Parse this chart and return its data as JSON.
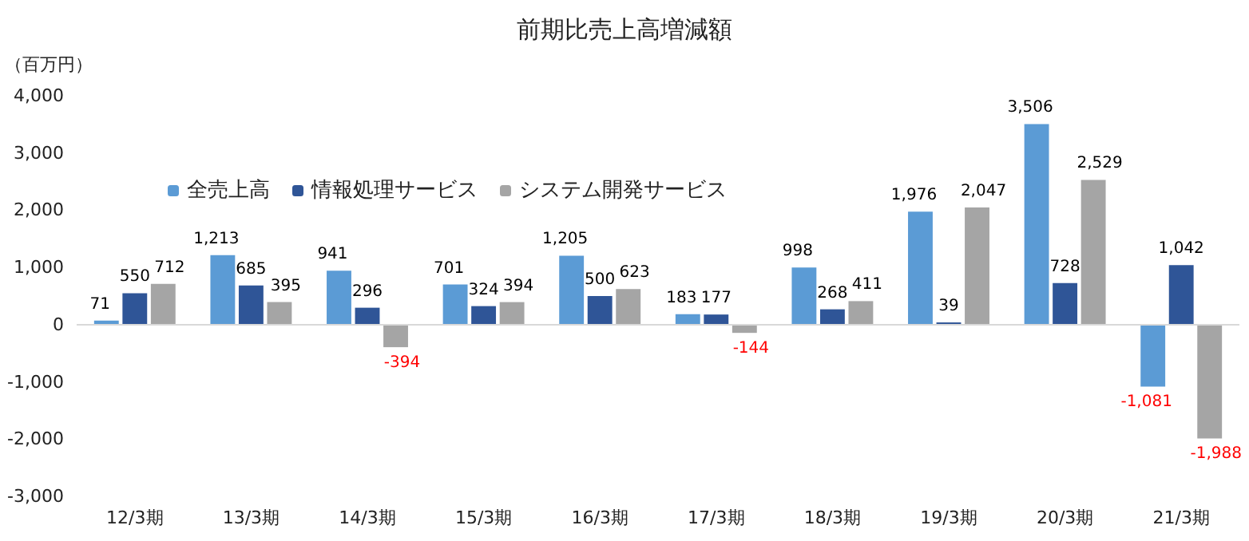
{
  "chart_data": {
    "type": "bar",
    "title": "前期比売上高増減額",
    "ylabel": "（百万円）",
    "categories": [
      "12/3期",
      "13/3期",
      "14/3期",
      "15/3期",
      "16/3期",
      "17/3期",
      "18/3期",
      "19/3期",
      "20/3期",
      "21/3期"
    ],
    "series": [
      {
        "name": "全売上高",
        "color": "#5b9bd5",
        "values": [
          71,
          1213,
          941,
          701,
          1205,
          183,
          998,
          1976,
          3506,
          -1081
        ],
        "value_labels": [
          "71",
          "1,213",
          "941",
          "701",
          "1,205",
          "183",
          "998",
          "1,976",
          "3,506",
          "-1,081"
        ]
      },
      {
        "name": "情報処理サービス",
        "color": "#2f5597",
        "values": [
          550,
          685,
          296,
          324,
          500,
          177,
          268,
          39,
          728,
          1042
        ],
        "value_labels": [
          "550",
          "685",
          "296",
          "324",
          "500",
          "177",
          "268",
          "39",
          "728",
          "1,042"
        ]
      },
      {
        "name": "システム開発サービス",
        "color": "#a5a5a5",
        "values": [
          712,
          395,
          -394,
          394,
          623,
          -144,
          411,
          2047,
          2529,
          -1988
        ],
        "value_labels": [
          "712",
          "395",
          "-394",
          "394",
          "623",
          "-144",
          "411",
          "2,047",
          "2,529",
          "-1,988"
        ]
      }
    ],
    "ylim": [
      -3000,
      4000
    ],
    "yticks": [
      {
        "value": -3000,
        "label": "-3,000"
      },
      {
        "value": -2000,
        "label": "-2,000"
      },
      {
        "value": -1000,
        "label": "-1,000"
      },
      {
        "value": 0,
        "label": "0"
      },
      {
        "value": 1000,
        "label": "1,000"
      },
      {
        "value": 2000,
        "label": "2,000"
      },
      {
        "value": 3000,
        "label": "3,000"
      },
      {
        "value": 4000,
        "label": "4,000"
      }
    ],
    "ref_lines": [
      {
        "axis": "y",
        "value": 0,
        "color": "#d9d9d9"
      }
    ],
    "grid": false,
    "legend": "top left"
  }
}
